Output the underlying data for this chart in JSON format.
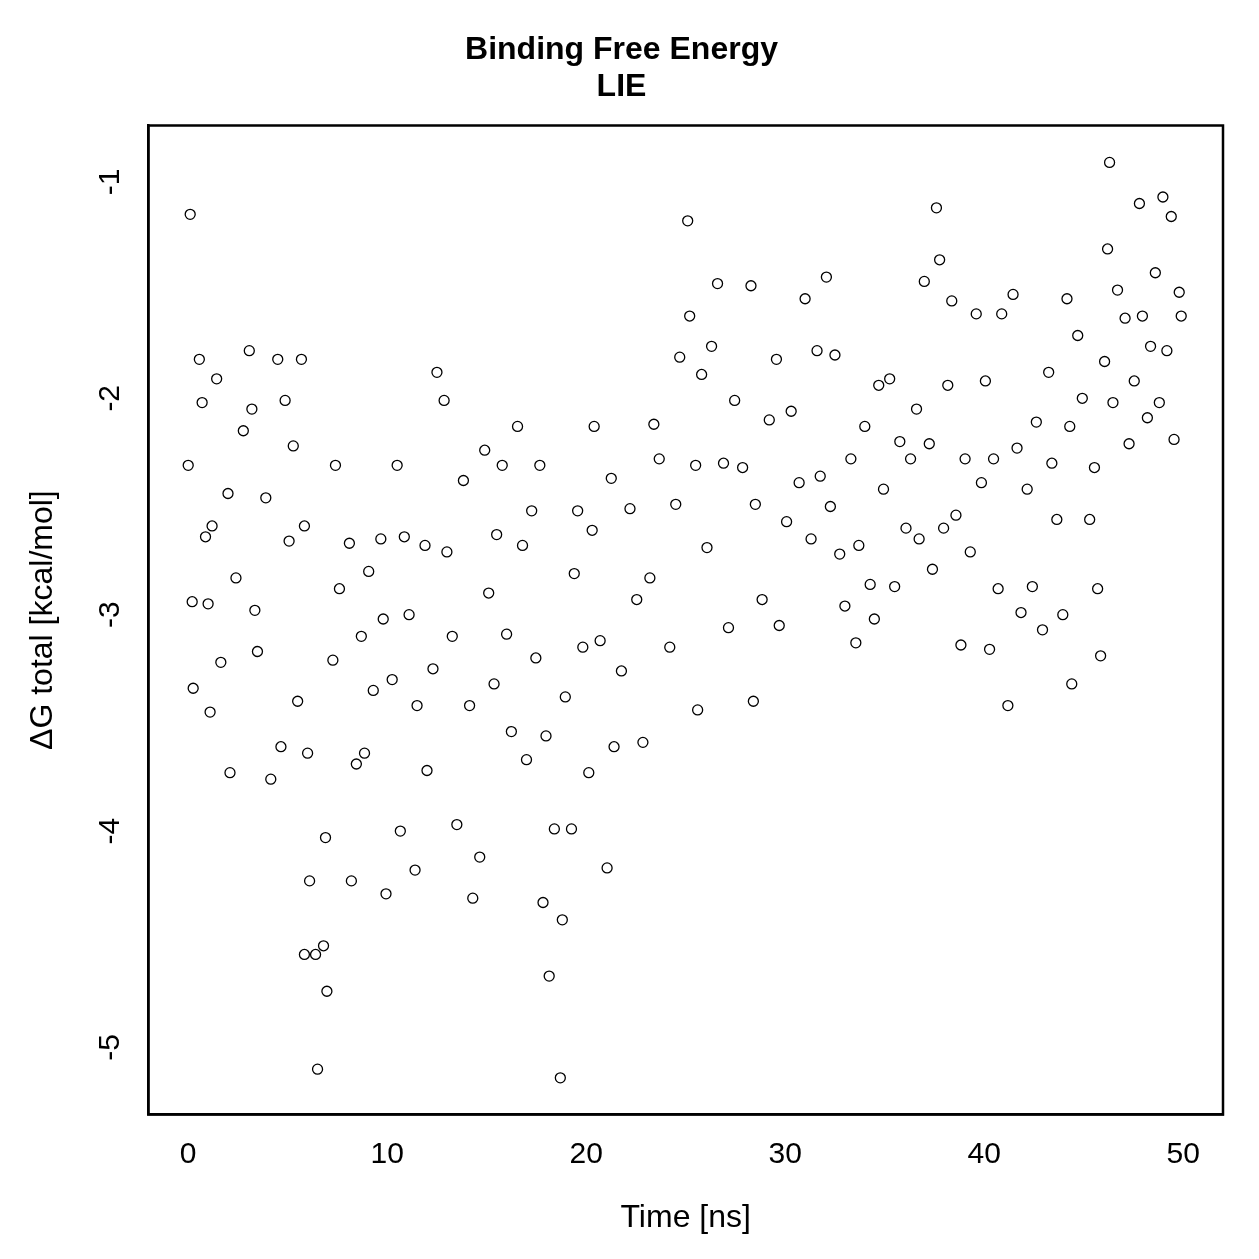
{
  "chart_data": {
    "type": "scatter",
    "title": "Binding Free Energy\nLIE",
    "xlabel": "Time [ns]",
    "ylabel": "ΔG total [kcal/mol]",
    "xlim": [
      -2,
      52
    ],
    "ylim": [
      -5.31,
      -0.74
    ],
    "xticks": [
      0,
      10,
      20,
      30,
      40,
      50
    ],
    "yticks": [
      -5,
      -4,
      -3,
      -2,
      -1
    ],
    "grid": false,
    "legend": false,
    "marker": "circle",
    "series": [
      {
        "color": "#000000",
        "x": [
          0.1,
          0,
          0.2,
          0.25,
          0.56,
          0.7,
          0.87,
          1.0,
          1.1,
          1.43,
          1.2,
          1.64,
          2.0,
          2.1,
          2.4,
          2.77,
          3.07,
          3.2,
          3.35,
          3.48,
          3.9,
          4.15,
          4.5,
          4.66,
          4.87,
          5.07,
          5.28,
          5.5,
          5.69,
          5.84,
          6.0,
          5.84,
          6.1,
          6.5,
          6.4,
          6.8,
          6.97,
          6.9,
          7.27,
          7.4,
          7.6,
          8.1,
          8.2,
          8.45,
          8.7,
          8.86,
          9.07,
          9.3,
          9.68,
          9.8,
          9.94,
          10.25,
          10.5,
          10.66,
          10.86,
          11.1,
          11.4,
          11.5,
          11.9,
          12.0,
          12.3,
          12.5,
          12.86,
          13.0,
          13.27,
          13.5,
          13.83,
          14.14,
          14.3,
          14.65,
          14.9,
          15.1,
          15.37,
          15.5,
          15.78,
          16.0,
          16.24,
          16.55,
          16.8,
          17.0,
          17.26,
          17.47,
          17.67,
          17.83,
          17.98,
          18.14,
          18.4,
          18.7,
          18.8,
          18.95,
          19.26,
          19.4,
          19.57,
          19.83,
          20.13,
          20.3,
          20.4,
          20.7,
          21.05,
          21.26,
          21.4,
          21.77,
          22.2,
          22.54,
          22.85,
          23.2,
          23.4,
          23.67,
          24.2,
          24.5,
          24.7,
          25.1,
          25.2,
          25.5,
          25.6,
          25.8,
          26.07,
          26.3,
          26.6,
          26.9,
          27.15,
          27.46,
          27.86,
          28.28,
          28.4,
          28.5,
          28.84,
          29.2,
          29.56,
          29.7,
          30.07,
          30.3,
          30.7,
          31.0,
          31.3,
          31.6,
          31.76,
          32.07,
          32.27,
          32.5,
          32.74,
          33.0,
          33.3,
          33.55,
          33.7,
          34.0,
          34.27,
          34.48,
          34.7,
          34.94,
          35.25,
          35.5,
          35.76,
          36.07,
          36.3,
          36.6,
          36.73,
          36.99,
          37.24,
          37.4,
          37.6,
          37.76,
          37.96,
          38.17,
          38.37,
          38.58,
          38.83,
          39.04,
          39.3,
          39.6,
          39.86,
          40.06,
          40.27,
          40.47,
          40.7,
          40.88,
          41.19,
          41.45,
          41.65,
          41.85,
          42.16,
          42.42,
          42.62,
          42.93,
          43.24,
          43.4,
          43.65,
          43.95,
          44.16,
          44.3,
          44.4,
          44.7,
          44.93,
          45.3,
          45.54,
          45.7,
          45.85,
          46.05,
          46.2,
          46.3,
          46.47,
          46.7,
          47.08,
          47.28,
          47.54,
          47.8,
          47.95,
          48.2,
          48.36,
          48.6,
          48.8,
          48.98,
          49.18,
          49.4,
          49.54,
          49.8,
          49.9
        ],
        "values": [
          -1.15,
          -2.31,
          -2.94,
          -3.34,
          -1.82,
          -2.02,
          -2.64,
          -2.95,
          -3.45,
          -1.91,
          -2.59,
          -3.22,
          -2.44,
          -3.73,
          -2.83,
          -2.15,
          -1.78,
          -2.05,
          -2.98,
          -3.17,
          -2.46,
          -3.76,
          -1.82,
          -3.61,
          -2.01,
          -2.66,
          -2.22,
          -3.4,
          -1.82,
          -2.59,
          -3.64,
          -4.57,
          -4.23,
          -5.1,
          -4.57,
          -4.53,
          -4.74,
          -4.03,
          -3.21,
          -2.31,
          -2.88,
          -2.67,
          -4.23,
          -3.69,
          -3.1,
          -3.64,
          -2.8,
          -3.35,
          -2.65,
          -3.02,
          -4.29,
          -3.3,
          -2.31,
          -4.0,
          -2.64,
          -3.0,
          -4.18,
          -3.42,
          -2.68,
          -3.72,
          -3.25,
          -1.88,
          -2.01,
          -2.71,
          -3.1,
          -3.97,
          -2.38,
          -3.42,
          -4.31,
          -4.12,
          -2.24,
          -2.9,
          -3.32,
          -2.63,
          -2.31,
          -3.09,
          -3.54,
          -2.13,
          -2.68,
          -3.67,
          -2.52,
          -3.2,
          -2.31,
          -4.33,
          -3.56,
          -4.67,
          -3.99,
          -5.14,
          -4.41,
          -3.38,
          -3.99,
          -2.81,
          -2.52,
          -3.15,
          -3.73,
          -2.61,
          -2.13,
          -3.12,
          -4.17,
          -2.37,
          -3.61,
          -3.26,
          -2.51,
          -2.93,
          -3.59,
          -2.83,
          -2.12,
          -2.28,
          -3.15,
          -2.49,
          -1.81,
          -1.18,
          -1.62,
          -2.31,
          -3.44,
          -1.89,
          -2.69,
          -1.76,
          -1.47,
          -2.3,
          -3.06,
          -2.01,
          -2.32,
          -1.48,
          -3.4,
          -2.49,
          -2.93,
          -2.1,
          -1.82,
          -3.05,
          -2.57,
          -2.06,
          -2.39,
          -1.54,
          -2.65,
          -1.78,
          -2.36,
          -1.44,
          -2.5,
          -1.8,
          -2.72,
          -2.96,
          -2.28,
          -3.13,
          -2.68,
          -2.13,
          -2.86,
          -3.02,
          -1.94,
          -2.42,
          -1.91,
          -2.87,
          -2.2,
          -2.6,
          -2.28,
          -2.05,
          -2.65,
          -1.46,
          -2.21,
          -2.79,
          -1.12,
          -1.36,
          -2.6,
          -1.94,
          -1.55,
          -2.54,
          -3.14,
          -2.28,
          -2.71,
          -1.61,
          -2.39,
          -1.92,
          -3.16,
          -2.28,
          -2.88,
          -1.61,
          -3.42,
          -1.52,
          -2.23,
          -2.99,
          -2.42,
          -2.87,
          -2.11,
          -3.07,
          -1.88,
          -2.3,
          -2.56,
          -3.0,
          -1.54,
          -2.13,
          -3.32,
          -1.71,
          -2.0,
          -2.56,
          -2.32,
          -2.88,
          -3.19,
          -1.83,
          -1.31,
          -0.91,
          -2.02,
          -1.5,
          -1.63,
          -2.21,
          -1.92,
          -1.1,
          -1.62,
          -2.09,
          -1.76,
          -1.42,
          -2.02,
          -1.07,
          -1.78,
          -1.16,
          -2.19,
          -1.51,
          -1.62
        ]
      }
    ]
  }
}
